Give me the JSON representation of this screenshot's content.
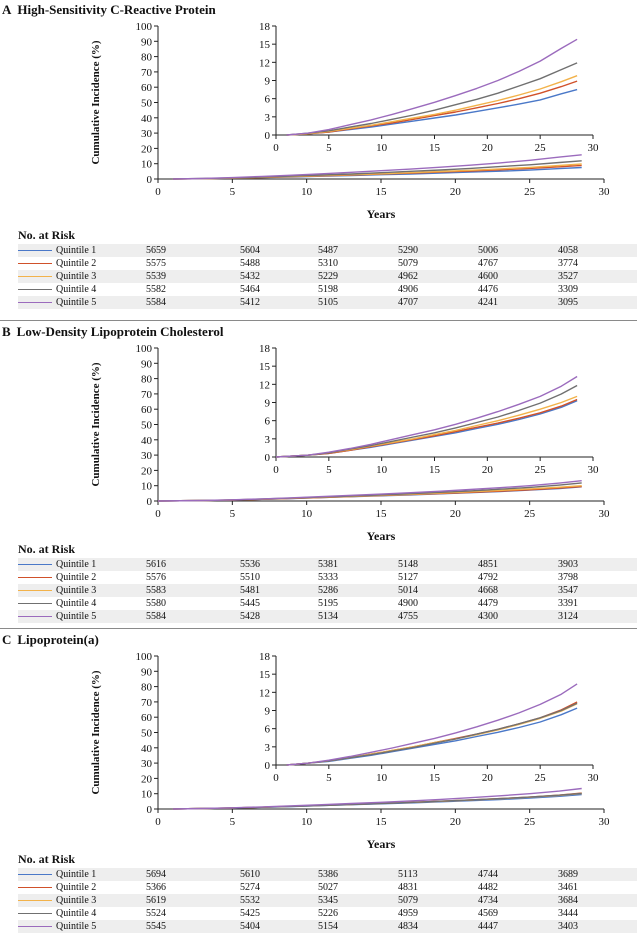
{
  "panels": [
    {
      "letter": "A",
      "title": "High-Sensitivity C-Reactive Protein",
      "risk_title": "No. at Risk",
      "risk_rows": [
        {
          "label": "Quintile 1",
          "values": [
            "5659",
            "5604",
            "5487",
            "5290",
            "5006",
            "4058"
          ]
        },
        {
          "label": "Quintile 2",
          "values": [
            "5575",
            "5488",
            "5310",
            "5079",
            "4767",
            "3774"
          ]
        },
        {
          "label": "Quintile 3",
          "values": [
            "5539",
            "5432",
            "5229",
            "4962",
            "4600",
            "3527"
          ]
        },
        {
          "label": "Quintile 4",
          "values": [
            "5582",
            "5464",
            "5198",
            "4906",
            "4476",
            "3309"
          ]
        },
        {
          "label": "Quintile 5",
          "values": [
            "5584",
            "5412",
            "5105",
            "4707",
            "4241",
            "3095"
          ]
        }
      ]
    },
    {
      "letter": "B",
      "title": "Low-Density Lipoprotein Cholesterol",
      "risk_title": "No. at Risk",
      "risk_rows": [
        {
          "label": "Quintile 1",
          "values": [
            "5616",
            "5536",
            "5381",
            "5148",
            "4851",
            "3903"
          ]
        },
        {
          "label": "Quintile 2",
          "values": [
            "5576",
            "5510",
            "5333",
            "5127",
            "4792",
            "3798"
          ]
        },
        {
          "label": "Quintile 3",
          "values": [
            "5583",
            "5481",
            "5286",
            "5014",
            "4668",
            "3547"
          ]
        },
        {
          "label": "Quintile 4",
          "values": [
            "5580",
            "5445",
            "5195",
            "4900",
            "4479",
            "3391"
          ]
        },
        {
          "label": "Quintile 5",
          "values": [
            "5584",
            "5428",
            "5134",
            "4755",
            "4300",
            "3124"
          ]
        }
      ]
    },
    {
      "letter": "C",
      "title": "Lipoprotein(a)",
      "risk_title": "No. at Risk",
      "risk_rows": [
        {
          "label": "Quintile 1",
          "values": [
            "5694",
            "5610",
            "5386",
            "5113",
            "4744",
            "3689"
          ]
        },
        {
          "label": "Quintile 2",
          "values": [
            "5366",
            "5274",
            "5027",
            "4831",
            "4482",
            "3461"
          ]
        },
        {
          "label": "Quintile 3",
          "values": [
            "5619",
            "5532",
            "5345",
            "5079",
            "4734",
            "3684"
          ]
        },
        {
          "label": "Quintile 4",
          "values": [
            "5524",
            "5425",
            "5226",
            "4959",
            "4569",
            "3444"
          ]
        },
        {
          "label": "Quintile 5",
          "values": [
            "5545",
            "5404",
            "5154",
            "4834",
            "4447",
            "3403"
          ]
        }
      ]
    }
  ],
  "colors": {
    "Quintile 1": "#4a78c8",
    "Quintile 2": "#d0512a",
    "Quintile 3": "#f2b24a",
    "Quintile 4": "#707070",
    "Quintile 5": "#9b6bbd"
  },
  "chart_data": [
    {
      "type": "line",
      "title": "High-Sensitivity C-Reactive Protein",
      "xlabel": "Years",
      "ylabel": "Cumulative Incidence (%)",
      "xlim": [
        0,
        30
      ],
      "ylim": [
        0,
        100
      ],
      "xticks": [
        0,
        5,
        10,
        15,
        20,
        25,
        30
      ],
      "yticks": [
        0,
        10,
        20,
        30,
        40,
        50,
        60,
        70,
        80,
        90,
        100
      ],
      "inset": {
        "xlim": [
          0,
          30
        ],
        "ylim": [
          0,
          18
        ],
        "xticks": [
          0,
          5,
          10,
          15,
          20,
          25,
          30
        ],
        "yticks": [
          0,
          3,
          6,
          9,
          12,
          15,
          18
        ]
      },
      "x": [
        1,
        3,
        5,
        7,
        9,
        11,
        13,
        15,
        17,
        19,
        21,
        23,
        25,
        27,
        28.5
      ],
      "series": [
        {
          "name": "Quintile 1",
          "values": [
            0,
            0.2,
            0.5,
            0.9,
            1.3,
            1.8,
            2.3,
            2.8,
            3.3,
            3.9,
            4.5,
            5.1,
            5.8,
            6.8,
            7.5
          ]
        },
        {
          "name": "Quintile 2",
          "values": [
            0,
            0.2,
            0.5,
            1.0,
            1.5,
            2.0,
            2.6,
            3.2,
            3.8,
            4.5,
            5.2,
            6.0,
            6.9,
            8.0,
            8.9
          ]
        },
        {
          "name": "Quintile 3",
          "values": [
            0,
            0.2,
            0.6,
            1.1,
            1.6,
            2.2,
            2.8,
            3.4,
            4.1,
            4.9,
            5.7,
            6.6,
            7.6,
            8.8,
            9.8
          ]
        },
        {
          "name": "Quintile 4",
          "values": [
            0,
            0.3,
            0.7,
            1.3,
            1.9,
            2.6,
            3.3,
            4.1,
            5.0,
            5.9,
            6.9,
            8.1,
            9.3,
            10.8,
            11.9
          ]
        },
        {
          "name": "Quintile 5",
          "values": [
            0,
            0.3,
            0.9,
            1.7,
            2.5,
            3.4,
            4.4,
            5.4,
            6.5,
            7.7,
            9.0,
            10.5,
            12.2,
            14.3,
            15.8
          ]
        }
      ]
    },
    {
      "type": "line",
      "title": "Low-Density Lipoprotein Cholesterol",
      "xlabel": "Years",
      "ylabel": "Cumulative Incidence (%)",
      "xlim": [
        0,
        30
      ],
      "ylim": [
        0,
        100
      ],
      "xticks": [
        0,
        5,
        10,
        15,
        20,
        25,
        30
      ],
      "yticks": [
        0,
        10,
        20,
        30,
        40,
        50,
        60,
        70,
        80,
        90,
        100
      ],
      "inset": {
        "xlim": [
          0,
          30
        ],
        "ylim": [
          0,
          18
        ],
        "xticks": [
          0,
          5,
          10,
          15,
          20,
          25,
          30
        ],
        "yticks": [
          0,
          3,
          6,
          9,
          12,
          15,
          18
        ]
      },
      "x": [
        0,
        3,
        5,
        7,
        9,
        11,
        13,
        15,
        17,
        19,
        21,
        23,
        25,
        27,
        28.5
      ],
      "series": [
        {
          "name": "Quintile 1",
          "values": [
            0,
            0.3,
            0.6,
            1.1,
            1.6,
            2.2,
            2.8,
            3.4,
            4.0,
            4.7,
            5.4,
            6.2,
            7.1,
            8.2,
            9.3
          ]
        },
        {
          "name": "Quintile 2",
          "values": [
            0,
            0.3,
            0.6,
            1.1,
            1.7,
            2.3,
            2.9,
            3.5,
            4.2,
            4.9,
            5.6,
            6.4,
            7.3,
            8.4,
            9.5
          ]
        },
        {
          "name": "Quintile 3",
          "values": [
            0,
            0.3,
            0.7,
            1.2,
            1.8,
            2.4,
            3.0,
            3.7,
            4.4,
            5.2,
            6.0,
            6.9,
            7.9,
            9.0,
            10.0
          ]
        },
        {
          "name": "Quintile 4",
          "values": [
            0,
            0.3,
            0.7,
            1.3,
            1.9,
            2.6,
            3.3,
            4.0,
            4.8,
            5.7,
            6.6,
            7.7,
            8.9,
            10.4,
            11.8
          ]
        },
        {
          "name": "Quintile 5",
          "values": [
            0,
            0.3,
            0.8,
            1.4,
            2.1,
            2.9,
            3.7,
            4.5,
            5.4,
            6.4,
            7.5,
            8.7,
            10.0,
            11.7,
            13.3
          ]
        }
      ]
    },
    {
      "type": "line",
      "title": "Lipoprotein(a)",
      "xlabel": "Years",
      "ylabel": "Cumulative Incidence (%)",
      "xlim": [
        0,
        30
      ],
      "ylim": [
        0,
        100
      ],
      "xticks": [
        0,
        5,
        10,
        15,
        20,
        25,
        30
      ],
      "yticks": [
        0,
        10,
        20,
        30,
        40,
        50,
        60,
        70,
        80,
        90,
        100
      ],
      "inset": {
        "xlim": [
          0,
          30
        ],
        "ylim": [
          0,
          18
        ],
        "xticks": [
          0,
          5,
          10,
          15,
          20,
          25,
          30
        ],
        "yticks": [
          0,
          3,
          6,
          9,
          12,
          15,
          18
        ]
      },
      "x": [
        1,
        3,
        5,
        7,
        9,
        11,
        13,
        15,
        17,
        19,
        21,
        23,
        25,
        27,
        28.5
      ],
      "series": [
        {
          "name": "Quintile 1",
          "values": [
            0,
            0.3,
            0.6,
            1.1,
            1.6,
            2.2,
            2.8,
            3.4,
            4.0,
            4.7,
            5.4,
            6.2,
            7.1,
            8.3,
            9.4
          ]
        },
        {
          "name": "Quintile 2",
          "values": [
            0,
            0.3,
            0.7,
            1.2,
            1.8,
            2.4,
            3.0,
            3.7,
            4.4,
            5.1,
            5.9,
            6.8,
            7.8,
            9.1,
            10.4
          ]
        },
        {
          "name": "Quintile 3",
          "values": [
            0,
            0.3,
            0.7,
            1.2,
            1.8,
            2.4,
            3.0,
            3.7,
            4.3,
            5.0,
            5.8,
            6.7,
            7.7,
            8.9,
            10.1
          ]
        },
        {
          "name": "Quintile 4",
          "values": [
            0,
            0.3,
            0.7,
            1.2,
            1.7,
            2.3,
            2.9,
            3.6,
            4.3,
            5.1,
            5.9,
            6.8,
            7.8,
            9.0,
            10.2
          ]
        },
        {
          "name": "Quintile 5",
          "values": [
            0,
            0.3,
            0.8,
            1.4,
            2.1,
            2.8,
            3.6,
            4.4,
            5.3,
            6.3,
            7.4,
            8.6,
            10.0,
            11.7,
            13.4
          ]
        }
      ]
    }
  ]
}
